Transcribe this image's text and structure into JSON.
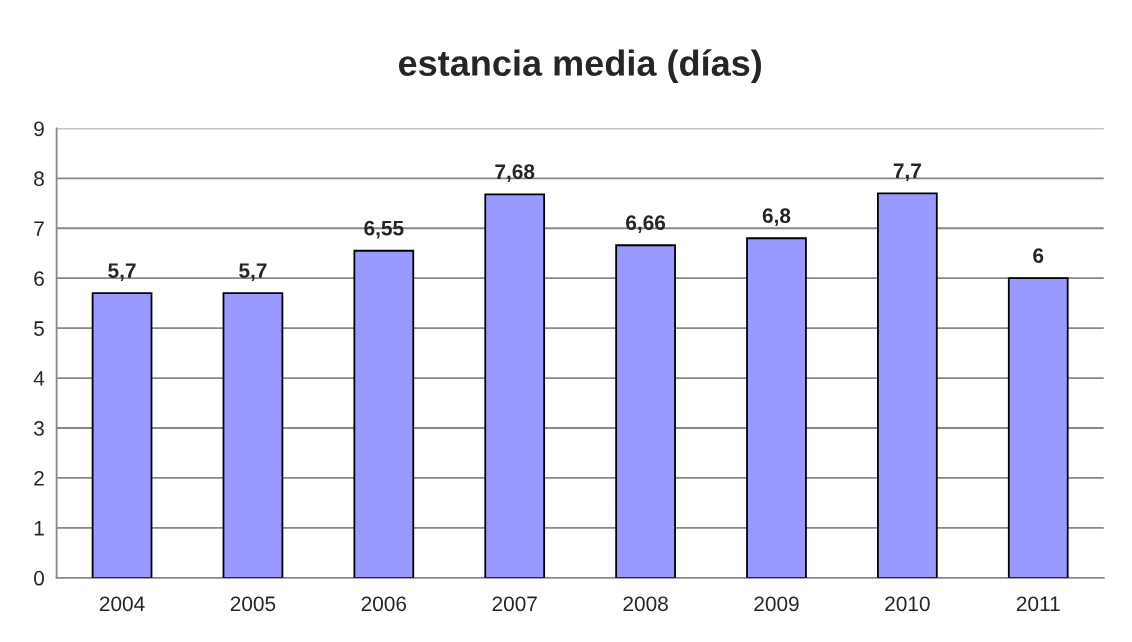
{
  "chart_data": {
    "type": "bar",
    "title": "estancia media (días)",
    "categories": [
      "2004",
      "2005",
      "2006",
      "2007",
      "2008",
      "2009",
      "2010",
      "2011"
    ],
    "values": [
      5.7,
      5.7,
      6.55,
      7.68,
      6.66,
      6.8,
      7.7,
      6
    ],
    "value_labels": [
      "5,7",
      "5,7",
      "6,55",
      "7,68",
      "6,66",
      "6,8",
      "7,7",
      "6"
    ],
    "color": "#9999ff",
    "ylim": [
      0,
      9
    ],
    "yticks": [
      0,
      1,
      2,
      3,
      4,
      5,
      6,
      7,
      8,
      9
    ],
    "grid": "y",
    "legend": false
  }
}
